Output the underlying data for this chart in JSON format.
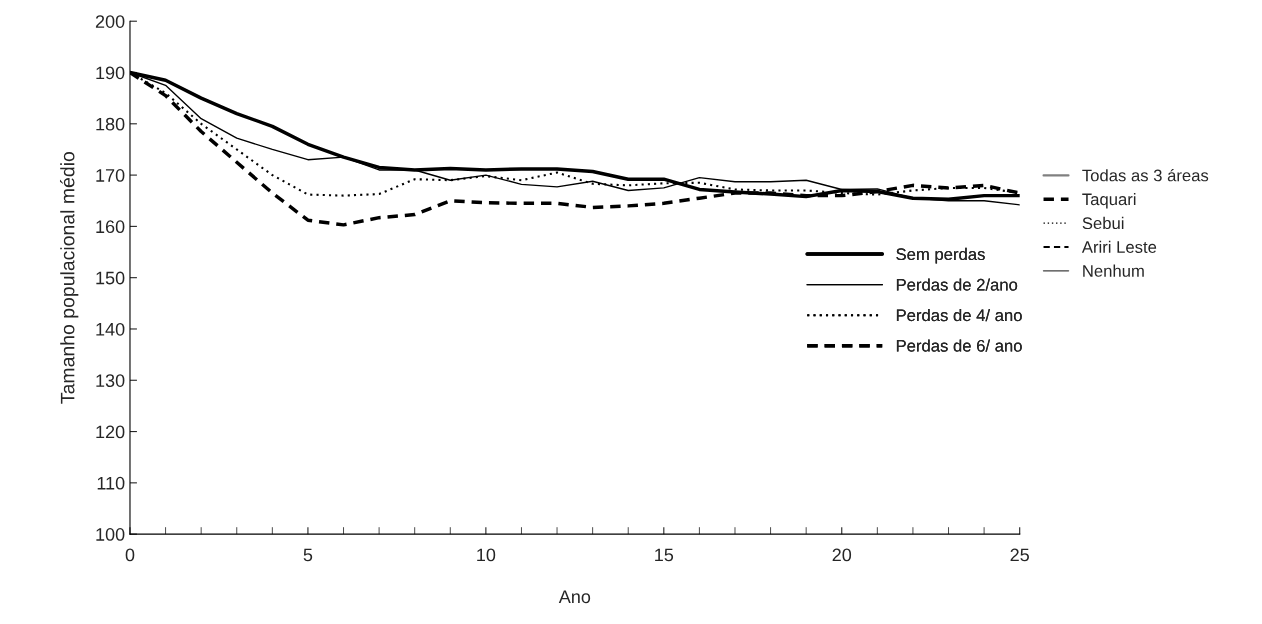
{
  "chart_data": {
    "type": "line",
    "xlabel": "Ano",
    "ylabel": "Tamanho populacional médio",
    "x": [
      0,
      1,
      2,
      3,
      4,
      5,
      6,
      7,
      8,
      9,
      10,
      11,
      12,
      13,
      14,
      15,
      16,
      17,
      18,
      19,
      20,
      21,
      22,
      23,
      24,
      25
    ],
    "xlim": [
      0,
      25
    ],
    "xticks": [
      0,
      5,
      10,
      15,
      20,
      25
    ],
    "ylim": [
      100,
      200
    ],
    "yticks": [
      100,
      110,
      120,
      130,
      140,
      150,
      160,
      170,
      180,
      190,
      200
    ],
    "grid": false,
    "legend": "right",
    "marker": "none",
    "series": [
      {
        "name": "Sem perdas",
        "color": "#000000",
        "line_style": "solid",
        "values": [
          190,
          188.5,
          185,
          182,
          179.5,
          176,
          173.5,
          171.5,
          171,
          171.3,
          171,
          171.2,
          171.2,
          170.7,
          169.2,
          169.2,
          167.2,
          166.7,
          166.3,
          165.8,
          167,
          166.8,
          165.5,
          165.3,
          166,
          166
        ]
      },
      {
        "name": "Perdas de 2/ano",
        "color": "#000000",
        "line_style": "solid",
        "values": [
          190,
          187.5,
          181,
          177.2,
          175,
          173,
          173.5,
          171,
          171,
          169,
          170,
          168.2,
          167.7,
          168.8,
          167,
          167.5,
          169.5,
          168.7,
          168.7,
          169,
          167.2,
          167.3,
          165.5,
          165,
          165,
          164.2
        ]
      },
      {
        "name": "Perdas de 4/ ano",
        "color": "#000000",
        "line_style": "dotted",
        "values": [
          190,
          186,
          180,
          175,
          170,
          166.2,
          166,
          166.3,
          169.2,
          169,
          169.8,
          169,
          170.5,
          168.3,
          168,
          168.4,
          168.5,
          167.2,
          167,
          167,
          166.5,
          166.2,
          167,
          167.5,
          167.5,
          166.5
        ]
      },
      {
        "name": "Perdas de 6/ ano",
        "color": "#000000",
        "line_style": "dashed",
        "values": [
          190,
          185.5,
          178.5,
          172.5,
          166.5,
          161.2,
          160.3,
          161.7,
          162.3,
          165,
          164.6,
          164.5,
          164.5,
          163.7,
          164,
          164.5,
          165.5,
          166.5,
          166.5,
          166,
          166,
          166.8,
          168,
          167.5,
          168,
          166.5
        ]
      },
      {
        "name": "Todas as 3 áreas",
        "color": "#808080",
        "line_style": "solid",
        "values": [
          null,
          null,
          null,
          null,
          null,
          null,
          null,
          null,
          null,
          null,
          null,
          null,
          null,
          null,
          null,
          null,
          null,
          null,
          null,
          null,
          null,
          null,
          null,
          null,
          null,
          null
        ]
      },
      {
        "name": "Taquari",
        "color": "#000000",
        "line_style": "dashed",
        "values": [
          null,
          null,
          null,
          null,
          null,
          null,
          null,
          null,
          null,
          null,
          null,
          null,
          null,
          null,
          null,
          null,
          null,
          null,
          null,
          null,
          null,
          null,
          null,
          null,
          null,
          null
        ]
      },
      {
        "name": "Sebui",
        "color": "#000000",
        "line_style": "dotted",
        "values": [
          null,
          null,
          null,
          null,
          null,
          null,
          null,
          null,
          null,
          null,
          null,
          null,
          null,
          null,
          null,
          null,
          null,
          null,
          null,
          null,
          null,
          null,
          null,
          null,
          null,
          null
        ]
      },
      {
        "name": "Ariri Leste",
        "color": "#000000",
        "line_style": "dashed",
        "values": [
          null,
          null,
          null,
          null,
          null,
          null,
          null,
          null,
          null,
          null,
          null,
          null,
          null,
          null,
          null,
          null,
          null,
          null,
          null,
          null,
          null,
          null,
          null,
          null,
          null,
          null
        ]
      },
      {
        "name": "Nenhum",
        "color": "#404040",
        "line_style": "solid",
        "values": [
          null,
          null,
          null,
          null,
          null,
          null,
          null,
          null,
          null,
          null,
          null,
          null,
          null,
          null,
          null,
          null,
          null,
          null,
          null,
          null,
          null,
          null,
          null,
          null,
          null,
          null
        ]
      }
    ]
  }
}
